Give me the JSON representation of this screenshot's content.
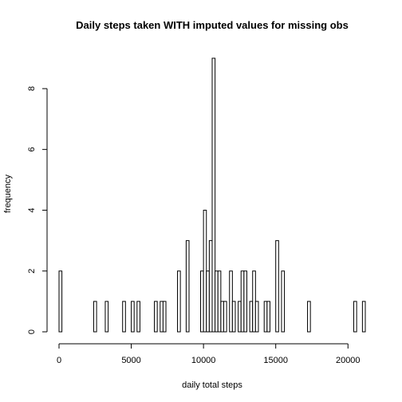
{
  "chart_data": {
    "type": "bar",
    "title": "Daily steps taken WITH imputed values for missing obs",
    "xlabel": "daily total steps",
    "ylabel": "frequency",
    "xlim": [
      0,
      21200
    ],
    "ylim": [
      0,
      9
    ],
    "x_ticks": [
      0,
      5000,
      10000,
      15000,
      20000
    ],
    "x_tick_labels": [
      "0",
      "5000",
      "10000",
      "15000",
      "20000"
    ],
    "y_ticks": [
      0,
      2,
      4,
      6,
      8
    ],
    "y_tick_labels": [
      "0",
      "2",
      "4",
      "6",
      "8"
    ],
    "bin_width": 200,
    "bins": [
      {
        "x0": 0,
        "value": 2
      },
      {
        "x0": 2400,
        "value": 1
      },
      {
        "x0": 3200,
        "value": 1
      },
      {
        "x0": 4400,
        "value": 1
      },
      {
        "x0": 5000,
        "value": 1
      },
      {
        "x0": 5400,
        "value": 1
      },
      {
        "x0": 6600,
        "value": 1
      },
      {
        "x0": 7000,
        "value": 1
      },
      {
        "x0": 7200,
        "value": 1
      },
      {
        "x0": 8200,
        "value": 2
      },
      {
        "x0": 8800,
        "value": 3
      },
      {
        "x0": 9800,
        "value": 2
      },
      {
        "x0": 10000,
        "value": 4
      },
      {
        "x0": 10200,
        "value": 2
      },
      {
        "x0": 10400,
        "value": 3
      },
      {
        "x0": 10600,
        "value": 9
      },
      {
        "x0": 10800,
        "value": 2
      },
      {
        "x0": 11000,
        "value": 2
      },
      {
        "x0": 11200,
        "value": 1
      },
      {
        "x0": 11400,
        "value": 1
      },
      {
        "x0": 11800,
        "value": 2
      },
      {
        "x0": 12000,
        "value": 1
      },
      {
        "x0": 12400,
        "value": 1
      },
      {
        "x0": 12600,
        "value": 2
      },
      {
        "x0": 12800,
        "value": 2
      },
      {
        "x0": 13200,
        "value": 1
      },
      {
        "x0": 13400,
        "value": 2
      },
      {
        "x0": 13600,
        "value": 1
      },
      {
        "x0": 14200,
        "value": 1
      },
      {
        "x0": 14400,
        "value": 1
      },
      {
        "x0": 15000,
        "value": 3
      },
      {
        "x0": 15400,
        "value": 2
      },
      {
        "x0": 17200,
        "value": 1
      },
      {
        "x0": 20400,
        "value": 1
      },
      {
        "x0": 21000,
        "value": 1
      }
    ],
    "bar_fill": "#ffffff",
    "bar_stroke": "#000000",
    "grid": false,
    "legend": "none"
  }
}
